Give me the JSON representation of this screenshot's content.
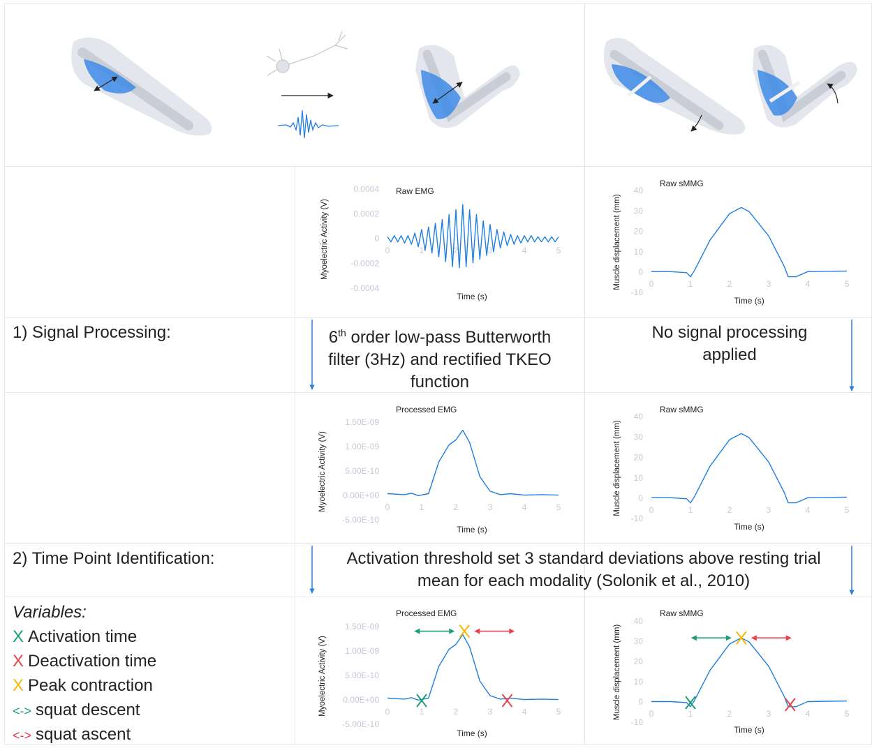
{
  "steps": [
    {
      "label": "1) Signal Processing:",
      "emg_text": {
        "base": "6",
        "sup": "th",
        "rest": " order low-pass Butterworth filter (3Hz) and rectified TKEO function"
      },
      "smmg_text": "No signal processing applied"
    },
    {
      "label": "2) Time Point Identification:",
      "text": "Activation threshold set 3 standard deviations above resting trial mean for each modality (Solonik et al., 2010)"
    }
  ],
  "variables": {
    "title": "Variables:",
    "items": [
      {
        "symbol": "X",
        "text": "Activation time",
        "color": "#1a9e77"
      },
      {
        "symbol": "X",
        "text": "Deactivation time",
        "color": "#e8424a"
      },
      {
        "symbol": "X",
        "text": "Peak contraction",
        "color": "#f5b700"
      },
      {
        "symbol": "<->",
        "text": "squat descent",
        "color": "#1a9e77"
      },
      {
        "symbol": "<->",
        "text": "squat ascent",
        "color": "#e8424a"
      }
    ]
  },
  "charts": [
    {
      "type": "line",
      "title": "Raw EMG",
      "xlabel": "Time (s)",
      "ylabel": "Myoelectric Activity (V)",
      "color": "#1f7fe0",
      "xlim": [
        0,
        5
      ],
      "ylim": [
        -0.0004,
        0.0004
      ],
      "xticks": [
        0,
        1,
        2,
        3,
        4,
        5
      ],
      "yticks": [
        0.0004,
        0.0002,
        0,
        -0.0002,
        -0.0004
      ],
      "x": [
        0,
        0.1,
        0.2,
        0.3,
        0.4,
        0.5,
        0.6,
        0.7,
        0.8,
        0.9,
        1,
        1.1,
        1.2,
        1.3,
        1.4,
        1.5,
        1.6,
        1.7,
        1.8,
        1.9,
        2,
        2.1,
        2.2,
        2.3,
        2.4,
        2.5,
        2.6,
        2.7,
        2.8,
        2.9,
        3,
        3.1,
        3.2,
        3.3,
        3.4,
        3.5,
        3.6,
        3.7,
        3.8,
        3.9,
        4,
        4.1,
        4.2,
        4.3,
        4.4,
        4.5,
        4.6,
        4.7,
        4.8,
        4.9,
        5
      ],
      "values": [
        2e-05,
        -2e-05,
        3e-05,
        -2e-05,
        3e-05,
        -3e-05,
        3e-05,
        -4e-05,
        5e-05,
        -6e-05,
        8e-05,
        -9e-05,
        0.0001,
        -0.00011,
        0.00013,
        -0.00014,
        0.00016,
        -0.00018,
        0.0002,
        -0.00022,
        0.00024,
        -0.00023,
        0.00028,
        -0.00022,
        0.00024,
        -0.00019,
        0.0002,
        -0.00016,
        0.00015,
        -0.00013,
        0.00012,
        -0.0001,
        8e-05,
        -7e-05,
        6e-05,
        -5e-05,
        4e-05,
        -4e-05,
        3e-05,
        -3e-05,
        3e-05,
        -2e-05,
        3e-05,
        -2e-05,
        2e-05,
        -2e-05,
        2e-05,
        -2e-05,
        2e-05,
        -2e-05,
        2e-05
      ]
    },
    {
      "type": "line",
      "title": "Raw sMMG",
      "xlabel": "Time (s)",
      "ylabel": "Muscle displacement (mm)",
      "color": "#1f7fe0",
      "xlim": [
        0,
        5
      ],
      "ylim": [
        -10,
        40
      ],
      "xticks": [
        0,
        1,
        2,
        3,
        4,
        5
      ],
      "yticks": [
        40,
        30,
        20,
        10,
        0,
        -10
      ],
      "x": [
        0,
        0.5,
        0.9,
        1,
        1.1,
        1.5,
        2,
        2.3,
        2.5,
        3,
        3.4,
        3.5,
        3.7,
        4,
        4.5,
        5
      ],
      "values": [
        0.5,
        0.5,
        0,
        -2,
        1,
        16,
        29,
        32,
        30,
        18,
        3,
        -2,
        -2,
        0.5,
        0.7,
        0.8
      ]
    },
    {
      "type": "line",
      "title": "Processed EMG",
      "xlabel": "Time (s)",
      "ylabel": "Myoelectric Activity (V)",
      "color": "#1f7fe0",
      "xlim": [
        0,
        5
      ],
      "ylim": [
        -5e-10,
        1.5e-09
      ],
      "xticks": [
        0,
        1,
        2,
        3,
        4,
        5
      ],
      "yticks": [
        {
          "value": 1.5e-09,
          "label": "1.50E-09"
        },
        {
          "value": 1e-09,
          "label": "1.00E-09"
        },
        {
          "value": 5e-10,
          "label": "5.00E-10"
        },
        {
          "value": 0,
          "label": "0.00E+00"
        },
        {
          "value": -5e-10,
          "label": "-5.00E-10"
        }
      ],
      "x": [
        0,
        0.5,
        0.7,
        0.9,
        1.2,
        1.5,
        1.8,
        2,
        2.2,
        2.4,
        2.7,
        3,
        3.3,
        3.6,
        4,
        4.5,
        5
      ],
      "values": [
        5e-11,
        3e-11,
        6e-11,
        1e-11,
        5e-11,
        7e-10,
        1.05e-09,
        1.15e-09,
        1.35e-09,
        1.1e-09,
        4e-10,
        1e-10,
        3e-11,
        5e-11,
        2e-11,
        3e-11,
        2e-11
      ]
    },
    {
      "type": "line",
      "title": "Raw sMMG",
      "xlabel": "Time (s)",
      "ylabel": "Muscle displacement (mm)",
      "color": "#1f7fe0",
      "xlim": [
        0,
        5
      ],
      "ylim": [
        -10,
        40
      ],
      "xticks": [
        0,
        1,
        2,
        3,
        4,
        5
      ],
      "yticks": [
        40,
        30,
        20,
        10,
        0,
        -10
      ],
      "x": [
        0,
        0.5,
        0.9,
        1,
        1.1,
        1.5,
        2,
        2.3,
        2.5,
        3,
        3.4,
        3.5,
        3.7,
        4,
        4.5,
        5
      ],
      "values": [
        0.5,
        0.5,
        0,
        -2,
        1,
        16,
        29,
        32,
        30,
        18,
        3,
        -2,
        -2,
        0.5,
        0.7,
        0.8
      ]
    },
    {
      "type": "line",
      "title": "Processed EMG",
      "xlabel": "Time (s)",
      "ylabel": "Myoelectric Activity (V)",
      "color": "#1f7fe0",
      "xlim": [
        0,
        5
      ],
      "ylim": [
        -5e-10,
        1.5e-09
      ],
      "xticks": [
        0,
        1,
        2,
        3,
        4,
        5
      ],
      "yticks": [
        {
          "value": 1.5e-09,
          "label": "1.50E-09"
        },
        {
          "value": 1e-09,
          "label": "1.00E-09"
        },
        {
          "value": 5e-10,
          "label": "5.00E-10"
        },
        {
          "value": 0,
          "label": "0.00E+00"
        },
        {
          "value": -5e-10,
          "label": "-5.00E-10"
        }
      ],
      "x": [
        0,
        0.5,
        0.7,
        0.9,
        1.2,
        1.5,
        1.8,
        2,
        2.2,
        2.4,
        2.7,
        3,
        3.3,
        3.6,
        4,
        4.5,
        5
      ],
      "values": [
        5e-11,
        3e-11,
        6e-11,
        1e-11,
        5e-11,
        7e-10,
        1.05e-09,
        1.15e-09,
        1.35e-09,
        1.1e-09,
        4e-10,
        1e-10,
        3e-11,
        5e-11,
        2e-11,
        3e-11,
        2e-11
      ],
      "markers": [
        {
          "x": 1,
          "y": 0,
          "color": "#1a9e77"
        },
        {
          "x": 3.5,
          "y": 0,
          "color": "#e8424a"
        },
        {
          "x": 2.25,
          "y": 1.42e-09,
          "color": "#f5b700"
        }
      ]
    },
    {
      "type": "line",
      "title": "Raw sMMG",
      "xlabel": "Time (s)",
      "ylabel": "Muscle displacement (mm)",
      "color": "#1f7fe0",
      "xlim": [
        0,
        5
      ],
      "ylim": [
        -10,
        40
      ],
      "xticks": [
        0,
        1,
        2,
        3,
        4,
        5
      ],
      "yticks": [
        40,
        30,
        20,
        10,
        0,
        -10
      ],
      "x": [
        0,
        0.5,
        0.9,
        1,
        1.1,
        1.5,
        2,
        2.3,
        2.5,
        3,
        3.4,
        3.5,
        3.7,
        4,
        4.5,
        5
      ],
      "values": [
        0.5,
        0.5,
        0,
        -2,
        1,
        16,
        29,
        32,
        30,
        18,
        3,
        -2,
        -2,
        0.5,
        0.7,
        0.8
      ],
      "markers": [
        {
          "x": 1,
          "y": 0,
          "color": "#1a9e77"
        },
        {
          "x": 3.55,
          "y": -1,
          "color": "#e8424a"
        },
        {
          "x": 2.3,
          "y": 32,
          "color": "#f5b700"
        }
      ]
    }
  ]
}
